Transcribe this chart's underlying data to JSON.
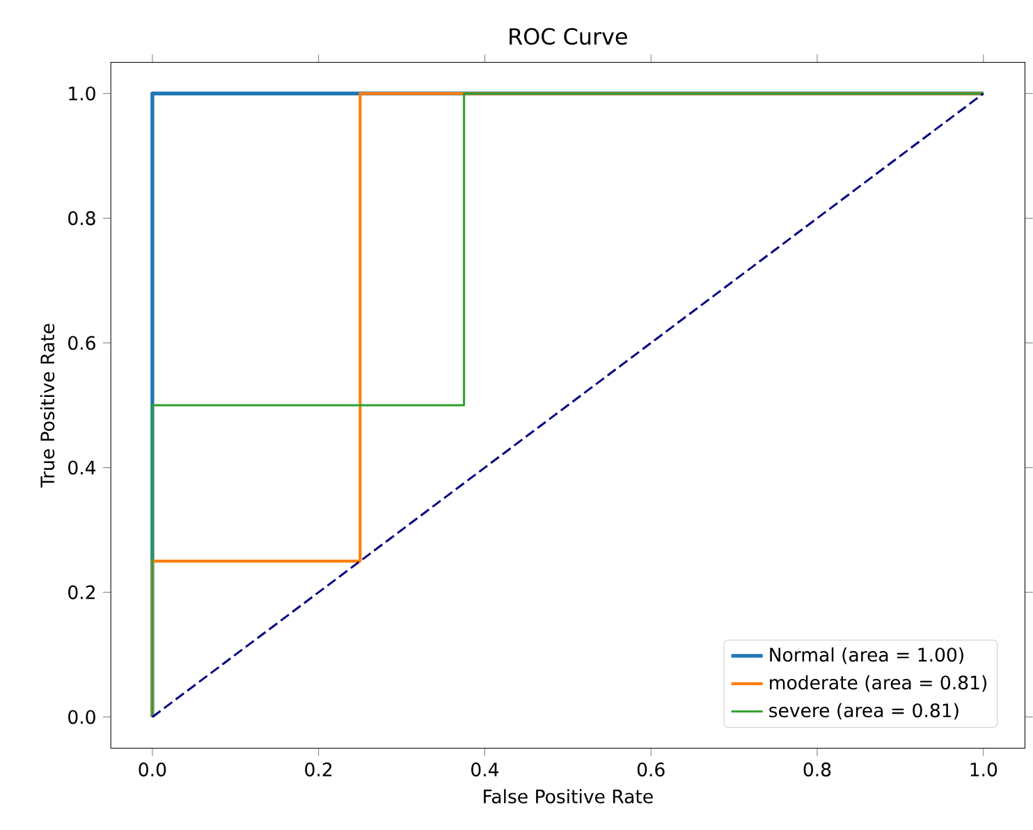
{
  "chart_data": {
    "type": "line",
    "title": "ROC Curve",
    "xlabel": "False Positive Rate",
    "ylabel": "True Positive Rate",
    "xlim": [
      -0.05,
      1.05
    ],
    "ylim": [
      -0.05,
      1.05
    ],
    "xticks": [
      {
        "value": 0,
        "label": "0.0"
      },
      {
        "value": 0.2,
        "label": "0.2"
      },
      {
        "value": 0.4,
        "label": "0.4"
      },
      {
        "value": 0.6,
        "label": "0.6"
      },
      {
        "value": 0.8,
        "label": "0.8"
      },
      {
        "value": 1,
        "label": "1.0"
      }
    ],
    "yticks": [
      {
        "value": 0,
        "label": "0.0"
      },
      {
        "value": 0.2,
        "label": "0.2"
      },
      {
        "value": 0.4,
        "label": "0.4"
      },
      {
        "value": 0.6,
        "label": "0.6"
      },
      {
        "value": 0.8,
        "label": "0.8"
      },
      {
        "value": 1,
        "label": "1.0"
      }
    ],
    "legend": "bottom right",
    "grid": false,
    "series": [
      {
        "name": "Normal (area = 1.00)",
        "color": "#1f77b4",
        "x": [
          0,
          0,
          1
        ],
        "values": [
          0,
          1,
          1
        ]
      },
      {
        "name": "moderate (area = 0.81)",
        "color": "#ff7f0e",
        "x": [
          0,
          0,
          0.25,
          0.25,
          1
        ],
        "values": [
          0,
          0.25,
          0.25,
          1,
          1
        ]
      },
      {
        "name": "severe (area = 0.81)",
        "color": "#2ca02c",
        "x": [
          0,
          0,
          0.375,
          0.375,
          1
        ],
        "values": [
          0,
          0.5,
          0.5,
          1,
          1
        ]
      },
      {
        "color": "#000080",
        "line_style": "dashed",
        "x": [
          0,
          1
        ],
        "values": [
          0,
          1
        ]
      }
    ]
  }
}
